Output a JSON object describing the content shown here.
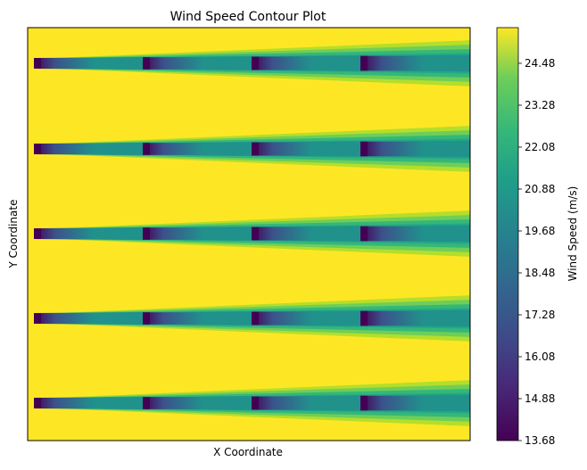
{
  "chart_data": {
    "type": "heatmap",
    "title": "Wind Speed Contour Plot",
    "xlabel": "X Coordinate",
    "ylabel": "Y Coordinate",
    "x_ticks_visible": false,
    "y_ticks_visible": false,
    "colormap": "viridis",
    "colorbar": {
      "label": "Wind Speed (m/s)",
      "range": [
        13.68,
        25.5
      ],
      "ticks": [
        "13.68",
        "14.88",
        "16.08",
        "17.28",
        "18.48",
        "19.68",
        "20.88",
        "22.08",
        "23.28",
        "24.48"
      ]
    },
    "free_stream_speed": 25.5,
    "wake_rows": 5,
    "turbines_per_row": 4,
    "wake_deficit_speeds": {
      "at_turbine": 13.68,
      "near_wake": 17.3,
      "mid_wake": 19.7,
      "far_wake": 21.5
    },
    "colors": {
      "viridis_low": "#440154",
      "viridis_high": "#fde725",
      "background": "#fde725"
    }
  }
}
